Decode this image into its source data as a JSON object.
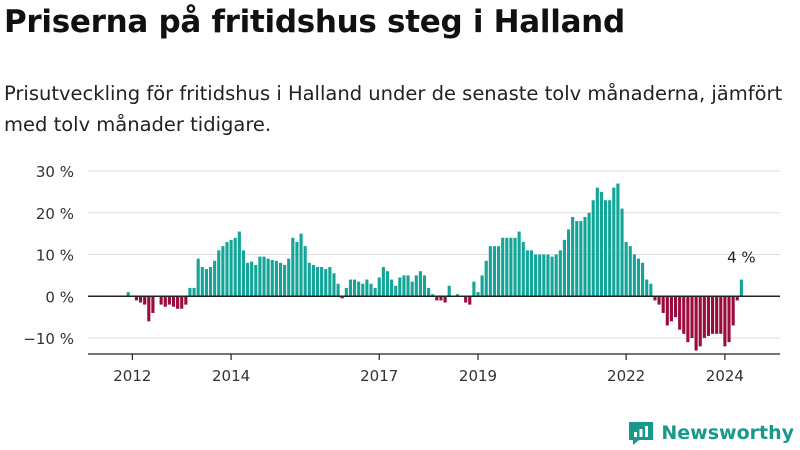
{
  "title": "Priserna på fritidshus steg i Halland",
  "subtitle": "Prisutveckling för fritidshus i Halland under de senaste tolv månaderna, jämfört med tolv månader tidigare.",
  "brand": {
    "name": "Newsworthy",
    "icon": "newsworthy-logo-icon",
    "color": "#17998c"
  },
  "colors": {
    "positive": "#13a597",
    "negative": "#9b0b3e",
    "grid": "#dddddd",
    "axis": "#222222"
  },
  "chart_data": {
    "type": "bar",
    "title": "",
    "xlabel": "",
    "ylabel": "",
    "y_unit": "%",
    "ylim": [
      -15,
      30
    ],
    "y_ticks": [
      30,
      20,
      10,
      0,
      -10
    ],
    "y_tick_labels": [
      "30 %",
      "20 %",
      "10 %",
      "0 %",
      "−10 %"
    ],
    "x_start": "2011-10",
    "x_ticks": [
      {
        "label": "2012",
        "date": "2012-01"
      },
      {
        "label": "2014",
        "date": "2014-01"
      },
      {
        "label": "2017",
        "date": "2017-01"
      },
      {
        "label": "2019",
        "date": "2019-01"
      },
      {
        "label": "2022",
        "date": "2022-01"
      },
      {
        "label": "2024",
        "date": "2024-01"
      }
    ],
    "annotation": {
      "text": "4 %",
      "value": 4
    },
    "values": [
      0,
      0,
      1,
      0,
      -1,
      -1.5,
      -2,
      -6,
      -4,
      0,
      -2,
      -2.5,
      -2,
      -2.5,
      -3,
      -3,
      -2,
      2,
      2,
      9,
      7,
      6.5,
      7,
      8.5,
      11,
      12,
      13,
      13.5,
      14,
      15.5,
      11,
      8,
      8.3,
      7.5,
      9.5,
      9.5,
      9,
      8.7,
      8.5,
      8,
      7.5,
      9,
      14,
      13,
      15,
      12,
      8,
      7.5,
      7,
      7,
      6.5,
      7,
      5.5,
      3,
      -0.5,
      2,
      4,
      4,
      3.5,
      3,
      4,
      3,
      2,
      4.5,
      7,
      6,
      4,
      2.5,
      4.5,
      5,
      5,
      3.5,
      5,
      6,
      5,
      2,
      0.5,
      -1,
      -1,
      -1.5,
      2.5,
      0,
      0.5,
      0,
      -1.5,
      -2,
      3.5,
      1,
      5,
      8.5,
      12,
      12,
      12,
      14,
      14,
      14,
      14,
      15.5,
      13,
      11,
      11,
      10,
      10,
      10,
      10,
      9.5,
      10,
      11,
      13.5,
      16,
      19,
      18,
      18,
      19,
      20,
      23,
      26,
      25,
      23,
      23,
      26,
      27,
      21,
      13,
      12,
      10,
      9,
      8,
      4,
      3,
      -1,
      -2,
      -4,
      -7,
      -6,
      -5,
      -8,
      -9,
      -11,
      -10,
      -13,
      -12,
      -10,
      -9.5,
      -9,
      -9,
      -9,
      -12,
      -11,
      -7,
      -1,
      4
    ]
  }
}
